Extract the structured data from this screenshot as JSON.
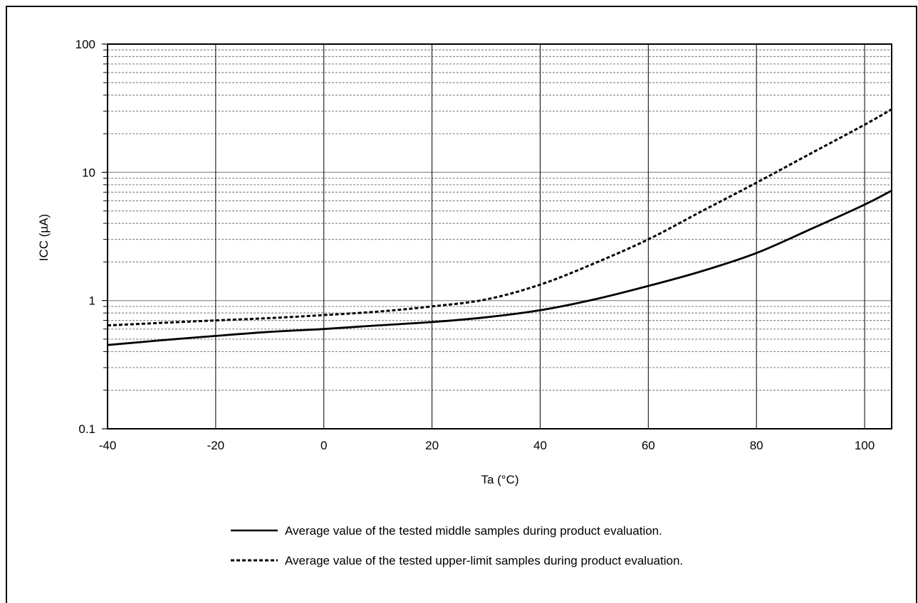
{
  "chart_data": {
    "type": "line",
    "title": "",
    "xlabel": "Ta (°C)",
    "ylabel": "ICC (µA)",
    "xlim": [
      -40,
      105
    ],
    "ylim": [
      0.1,
      100
    ],
    "yscale": "log",
    "xticks": [
      -40,
      -20,
      0,
      20,
      40,
      60,
      80,
      100
    ],
    "xtick_labels": [
      "-40",
      "-20",
      "0",
      "20",
      "40",
      "60",
      "80",
      "100"
    ],
    "yticks": [
      0.1,
      1,
      10,
      100
    ],
    "ytick_labels": [
      "0.1",
      "1",
      "10",
      "100"
    ],
    "grid": true,
    "legend_position": "bottom",
    "series": [
      {
        "name": "Average value of the tested middle samples during product evaluation.",
        "style": "solid",
        "x": [
          -40,
          -30,
          -20,
          -10,
          0,
          10,
          20,
          30,
          40,
          50,
          60,
          70,
          80,
          90,
          100,
          105
        ],
        "y": [
          0.45,
          0.49,
          0.53,
          0.57,
          0.6,
          0.64,
          0.68,
          0.74,
          0.84,
          1.02,
          1.3,
          1.7,
          2.35,
          3.6,
          5.6,
          7.2
        ]
      },
      {
        "name": "Average value of the tested upper-limit samples during product evaluation.",
        "style": "dashed",
        "x": [
          -40,
          -30,
          -20,
          -10,
          0,
          10,
          20,
          30,
          40,
          50,
          60,
          70,
          80,
          90,
          100,
          105
        ],
        "y": [
          0.64,
          0.67,
          0.7,
          0.73,
          0.77,
          0.82,
          0.9,
          1.02,
          1.33,
          1.95,
          3.0,
          5.0,
          8.3,
          14.0,
          23.5,
          31.0
        ]
      }
    ]
  }
}
